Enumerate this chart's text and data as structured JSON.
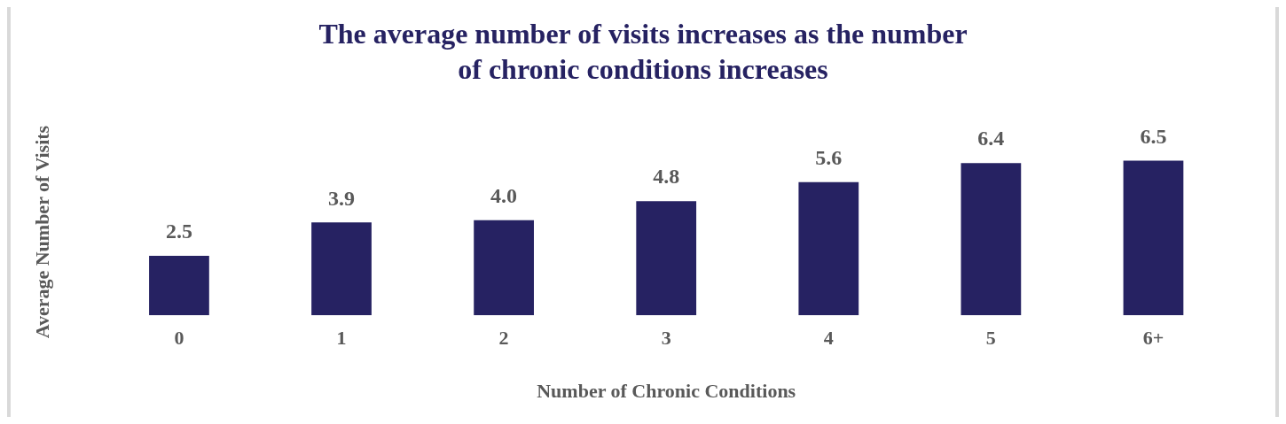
{
  "chart_data": {
    "type": "bar",
    "title": "The average number of visits increases as the number of chronic conditions increases",
    "xlabel": "Number of Chronic Conditions",
    "ylabel": "Average Number of Visits",
    "categories": [
      "0",
      "1",
      "2",
      "3",
      "4",
      "5",
      "6+"
    ],
    "values": [
      2.5,
      3.9,
      4.0,
      4.8,
      5.6,
      6.4,
      6.5
    ],
    "value_labels": [
      "2.5",
      "3.9",
      "4.0",
      "4.8",
      "5.6",
      "6.4",
      "6.5"
    ],
    "color": "#262262",
    "grid": false,
    "legend": false
  }
}
